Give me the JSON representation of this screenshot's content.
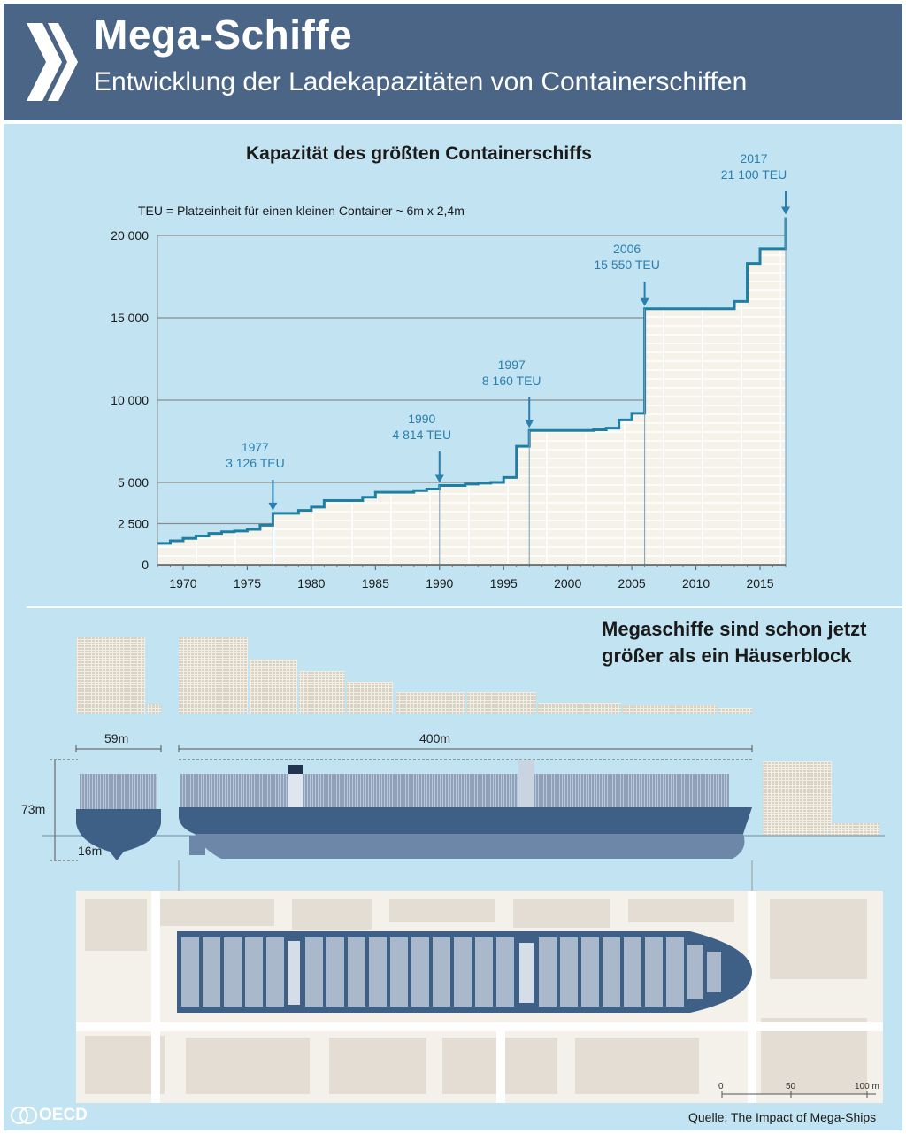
{
  "header": {
    "title": "Mega-Schiffe",
    "subtitle": "Entwicklung der Ladekapazitäten von Containerschiffen"
  },
  "chart_data": {
    "type": "line",
    "title": "Kapazität des größten Containerschiffs",
    "note": "TEU = Platzeinheit für einen kleinen Container ~ 6m x 2,4m",
    "xlabel": "",
    "ylabel": "",
    "x_ticks": [
      "1970",
      "1975",
      "1980",
      "1985",
      "1990",
      "1995",
      "2000",
      "2005",
      "2010",
      "2015"
    ],
    "y_ticks": [
      "0",
      "2 500",
      "5 000",
      "10 000",
      "15 000",
      "20 000"
    ],
    "xlim": [
      1968,
      2017
    ],
    "ylim": [
      0,
      20000
    ],
    "series": [
      {
        "x": [
          1968,
          1969,
          1970,
          1971,
          1972,
          1973,
          1974,
          1975,
          1976,
          1977,
          1978,
          1979,
          1980,
          1981,
          1982,
          1983,
          1984,
          1985,
          1986,
          1987,
          1988,
          1989,
          1990,
          1991,
          1992,
          1993,
          1994,
          1995,
          1996,
          1997,
          1998,
          1999,
          2000,
          2001,
          2002,
          2003,
          2004,
          2005,
          2006,
          2007,
          2008,
          2009,
          2010,
          2011,
          2012,
          2013,
          2014,
          2015,
          2016,
          2017
        ],
        "values": [
          1300,
          1450,
          1600,
          1750,
          1900,
          2000,
          2050,
          2150,
          2400,
          3126,
          3126,
          3300,
          3500,
          3900,
          3900,
          3900,
          4100,
          4400,
          4400,
          4400,
          4500,
          4600,
          4814,
          4814,
          4900,
          4950,
          5000,
          5300,
          7200,
          8160,
          8160,
          8160,
          8160,
          8160,
          8200,
          8300,
          8800,
          9200,
          15550,
          15550,
          15550,
          15550,
          15550,
          15550,
          15550,
          16000,
          18300,
          19200,
          19200,
          21100
        ]
      }
    ],
    "annotations": [
      {
        "x": 1977,
        "year": "1977",
        "value": "3 126 TEU"
      },
      {
        "x": 1990,
        "year": "1990",
        "value": "4 814 TEU"
      },
      {
        "x": 1997,
        "year": "1997",
        "value": "8 160 TEU"
      },
      {
        "x": 2006,
        "year": "2006",
        "value": "15 550 TEU"
      },
      {
        "x": 2017,
        "year": "2017",
        "value": "21 100 TEU"
      }
    ],
    "grid": true,
    "legend": "none"
  },
  "comparison": {
    "title_line1": "Megaschiffe sind schon jetzt",
    "title_line2": "größer als ein Häuserblock",
    "width_label": "59m",
    "length_label": "400m",
    "height_label": "73m",
    "draft_label": "16m",
    "scale_labels": [
      "0",
      "50",
      "100 m"
    ]
  },
  "footer": {
    "logo_text": "OECD",
    "source": "Quelle: The Impact of Mega-Ships"
  },
  "colors": {
    "header": "#4a6586",
    "panel": "#c2e3f1",
    "line": "#1f7fa3",
    "annotation": "#2a7fb0",
    "hull": "#3e5f86"
  }
}
